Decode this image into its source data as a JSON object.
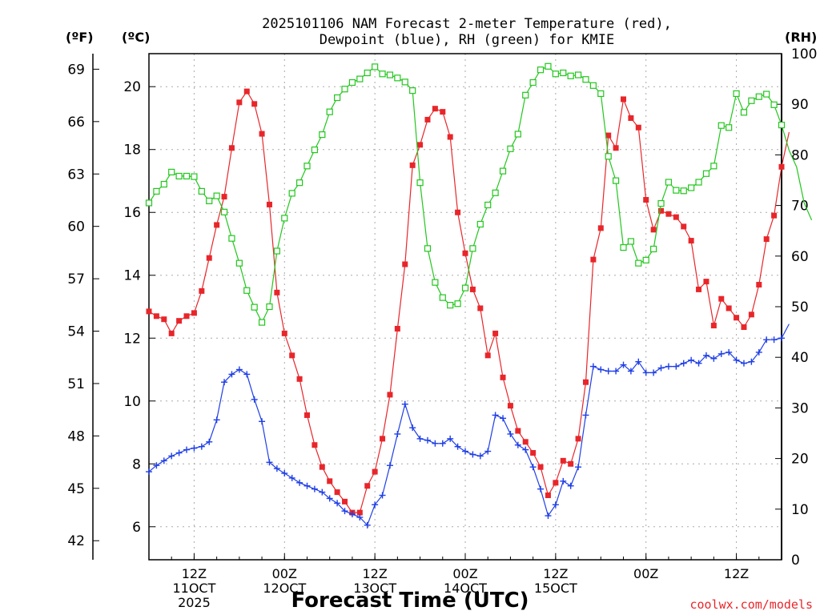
{
  "chart_data": {
    "type": "line",
    "title_line1": "2025101106 NAM Forecast 2-meter Temperature (red),",
    "title_line2": "Dewpoint (blue), RH (green) for KMIE",
    "xlabel": "Forecast Time (UTC)",
    "credit": "coolwx.com/models",
    "unit_f": "(ºF)",
    "unit_c": "(ºC)",
    "unit_rh": "(RH)",
    "x_range_hours": [
      0,
      84
    ],
    "c_range": [
      4.95,
      21.05
    ],
    "rh_range": [
      0,
      100
    ],
    "c_ticks": [
      "6",
      "8",
      "10",
      "12",
      "14",
      "16",
      "18",
      "20"
    ],
    "f_ticks": [
      "42",
      "45",
      "48",
      "51",
      "54",
      "57",
      "60",
      "63",
      "66",
      "69"
    ],
    "rh_ticks": [
      "0",
      "10",
      "20",
      "30",
      "40",
      "50",
      "60",
      "70",
      "80",
      "90",
      "100"
    ],
    "x_ticks": [
      {
        "hour": 6,
        "lines": [
          "12Z",
          "11OCT",
          "2025"
        ]
      },
      {
        "hour": 18,
        "lines": [
          "00Z",
          "12OCT"
        ]
      },
      {
        "hour": 30,
        "lines": [
          "12Z",
          "13OCT"
        ]
      },
      {
        "hour": 42,
        "lines": [
          "00Z",
          "14OCT"
        ]
      },
      {
        "hour": 54,
        "lines": [
          "12Z",
          "15OCT"
        ]
      },
      {
        "hour": 66,
        "lines": [
          "00Z",
          ""
        ]
      },
      {
        "hour": 78,
        "lines": [
          "12Z",
          ""
        ]
      }
    ],
    "colors": {
      "temperature": "#e8262a",
      "dewpoint": "#1f3fe6",
      "rh": "#22c71d"
    },
    "series": [
      {
        "name": "Temperature (°C)",
        "values": [
          12.85,
          12.7,
          12.6,
          12.15,
          12.55,
          12.7,
          12.8,
          13.5,
          14.55,
          15.6,
          16.5,
          18.05,
          19.5,
          19.85,
          19.45,
          18.5,
          16.25,
          13.45,
          12.15,
          11.45,
          10.7,
          9.55,
          8.6,
          7.9,
          7.45,
          7.1,
          6.8,
          6.45,
          6.45,
          7.3,
          7.75,
          8.8,
          10.2,
          12.3,
          14.35,
          17.5,
          18.15,
          18.95,
          19.3,
          19.2,
          18.4,
          16.0,
          14.7,
          13.55,
          12.95,
          11.45,
          12.15,
          10.75,
          9.85,
          9.05,
          8.7,
          8.35,
          7.9,
          7.0,
          7.4,
          8.1,
          8.0,
          8.8,
          10.6,
          14.5,
          15.5,
          18.45,
          18.05,
          19.6,
          19.0,
          18.7,
          16.4,
          15.45,
          16.05,
          15.95,
          15.85,
          15.55,
          15.1,
          13.55,
          13.8,
          12.4,
          13.25,
          12.95,
          12.65,
          12.35,
          12.75,
          13.7,
          15.15,
          15.9,
          17.45,
          18.55
        ]
      },
      {
        "name": "Dewpoint (°C)",
        "values": [
          7.75,
          7.95,
          8.1,
          8.25,
          8.35,
          8.45,
          8.5,
          8.55,
          8.7,
          9.4,
          10.6,
          10.85,
          11.0,
          10.85,
          10.05,
          9.35,
          8.05,
          7.85,
          7.7,
          7.55,
          7.4,
          7.3,
          7.2,
          7.1,
          6.9,
          6.75,
          6.5,
          6.4,
          6.3,
          6.05,
          6.7,
          7.0,
          7.95,
          8.95,
          9.9,
          9.15,
          8.8,
          8.75,
          8.65,
          8.65,
          8.8,
          8.55,
          8.4,
          8.3,
          8.25,
          8.4,
          9.55,
          9.45,
          8.95,
          8.6,
          8.45,
          7.9,
          7.2,
          6.35,
          6.7,
          7.45,
          7.3,
          7.9,
          9.55,
          11.1,
          11.0,
          10.95,
          10.95,
          11.15,
          10.95,
          11.25,
          10.9,
          10.9,
          11.05,
          11.1,
          11.1,
          11.2,
          11.3,
          11.2,
          11.45,
          11.35,
          11.5,
          11.55,
          11.3,
          11.2,
          11.25,
          11.55,
          11.95,
          11.95,
          12.0,
          12.45
        ]
      },
      {
        "name": "RH (%)",
        "values": [
          70.5,
          72.8,
          74.2,
          76.6,
          75.8,
          75.8,
          75.7,
          72.8,
          70.9,
          71.9,
          68.7,
          63.5,
          58.6,
          53.2,
          49.9,
          46.9,
          50.0,
          61.0,
          67.5,
          72.4,
          74.5,
          77.8,
          81.0,
          84.0,
          88.5,
          91.3,
          93.0,
          94.3,
          95.0,
          96.2,
          97.4,
          96.0,
          95.8,
          95.2,
          94.4,
          92.7,
          74.5,
          61.5,
          54.8,
          51.8,
          50.3,
          50.6,
          53.7,
          61.5,
          66.3,
          70.1,
          72.5,
          76.8,
          81.2,
          84.1,
          91.8,
          94.3,
          96.8,
          97.5,
          96.0,
          96.2,
          95.6,
          95.8,
          94.9,
          93.7,
          92.1,
          79.7,
          74.9,
          61.7,
          62.9,
          58.6,
          59.2,
          61.4,
          70.4,
          74.6,
          73.0,
          72.9,
          73.5,
          74.6,
          76.3,
          77.8,
          85.8,
          85.4,
          92.1,
          88.4,
          90.7,
          91.5,
          92.0,
          89.9,
          85.9,
          80.9,
          77.6,
          70.5,
          67.1
        ]
      }
    ]
  }
}
